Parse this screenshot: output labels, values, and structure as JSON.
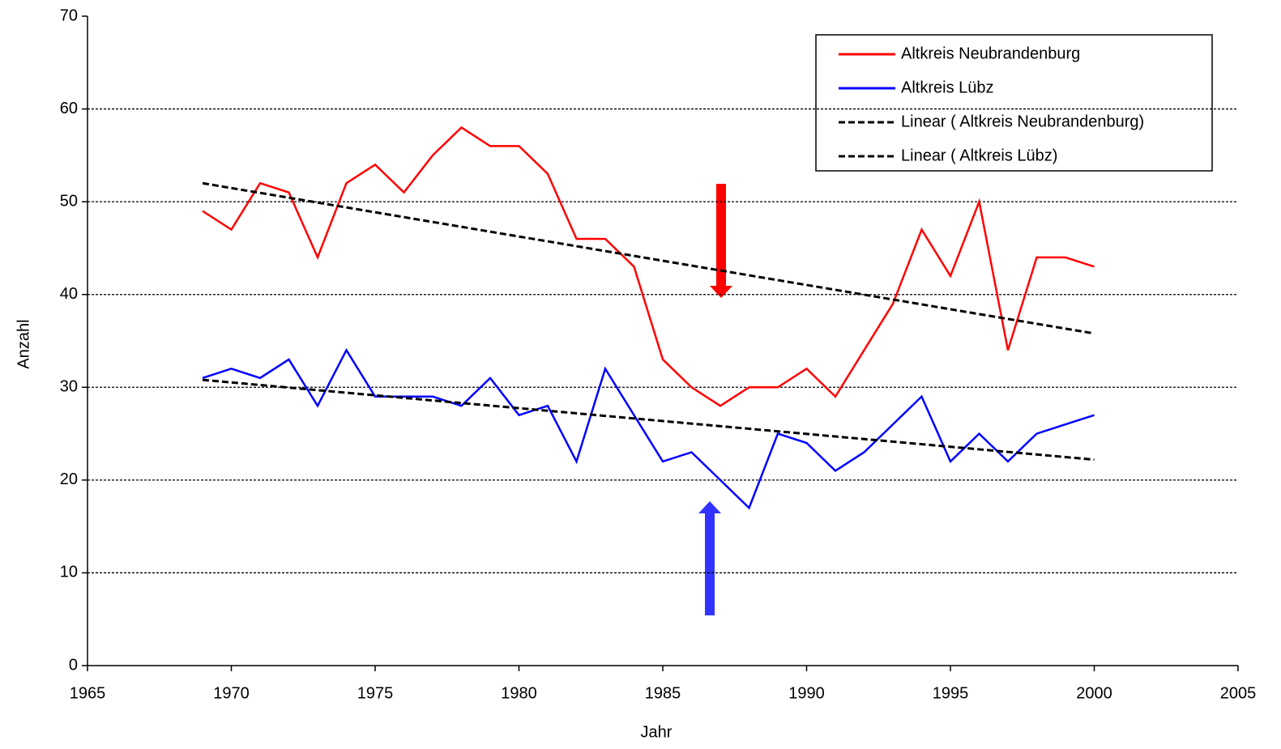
{
  "chart_data": {
    "type": "line",
    "x_label": "Jahr",
    "y_label": "Anzahl",
    "x": [
      1969,
      1970,
      1971,
      1972,
      1973,
      1974,
      1975,
      1976,
      1977,
      1978,
      1979,
      1980,
      1981,
      1982,
      1983,
      1984,
      1985,
      1986,
      1987,
      1988,
      1989,
      1990,
      1991,
      1992,
      1993,
      1994,
      1995,
      1996,
      1997,
      1998,
      1999,
      2000
    ],
    "series": [
      {
        "name": "Altkreis Neubrandenburg",
        "color": "#ff0000",
        "values": [
          49,
          47,
          52,
          51,
          44,
          52,
          54,
          51,
          55,
          58,
          56,
          56,
          53,
          46,
          46,
          43,
          33,
          30,
          28,
          30,
          30,
          32,
          29,
          34,
          39,
          47,
          42,
          50,
          34,
          44,
          44,
          43
        ]
      },
      {
        "name": "Altkreis Lübz",
        "color": "#0000ff",
        "values": [
          31,
          32,
          31,
          33,
          28,
          34,
          29,
          29,
          29,
          28,
          31,
          27,
          28,
          22,
          32,
          27,
          22,
          23,
          20,
          17,
          25,
          24,
          21,
          23,
          26,
          29,
          22,
          25,
          22,
          25,
          26,
          27
        ]
      },
      {
        "name": "Linear ( Altkreis Neubrandenburg)",
        "color": "#000000",
        "dashed": true,
        "x": [
          1969,
          2000
        ],
        "values": [
          52,
          35.8
        ]
      },
      {
        "name": "Linear ( Altkreis Lübz)",
        "color": "#000000",
        "dashed": true,
        "x": [
          1969,
          2000
        ],
        "values": [
          30.8,
          22.2
        ]
      }
    ],
    "xlim": [
      1965,
      2005
    ],
    "xticks": [
      1965,
      1970,
      1975,
      1980,
      1985,
      1990,
      1995,
      2000,
      2005
    ],
    "ylim": [
      0,
      70
    ],
    "yticks": [
      0,
      10,
      20,
      30,
      40,
      50,
      60,
      70
    ],
    "grid": true,
    "legend": "upper right"
  }
}
